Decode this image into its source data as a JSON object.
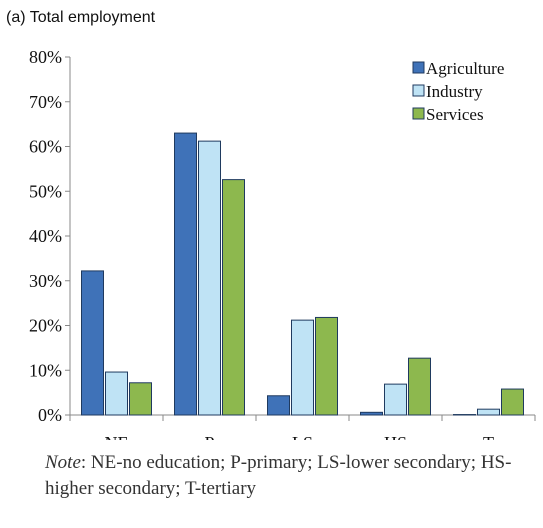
{
  "chart_data": {
    "type": "bar",
    "title": "(a) Total employment",
    "xlabel": "",
    "ylabel": "",
    "categories": [
      "NE",
      "P",
      "LS",
      "HS",
      "T"
    ],
    "series": [
      {
        "name": "Agriculture",
        "values": [
          32.2,
          63.0,
          4.3,
          0.6,
          0.1
        ],
        "color": "#3f72b8"
      },
      {
        "name": "Industry",
        "values": [
          9.6,
          61.2,
          21.2,
          6.9,
          1.3
        ],
        "color": "#bfe3f5"
      },
      {
        "name": "Services",
        "values": [
          7.2,
          52.6,
          21.8,
          12.7,
          5.8
        ],
        "color": "#8db84e"
      }
    ],
    "ylim": [
      0,
      80
    ],
    "yticks": [
      "0%",
      "10%",
      "20%",
      "30%",
      "40%",
      "50%",
      "60%",
      "70%",
      "80%"
    ],
    "legend_position": "top-right",
    "grid": false
  },
  "note": {
    "label": "Note",
    "text": ": NE-no education; P-primary; LS-lower secondary; HS-higher secondary; T-tertiary"
  },
  "colors": {
    "axis": "#888888",
    "bar_stroke": "#1f3a5f"
  }
}
